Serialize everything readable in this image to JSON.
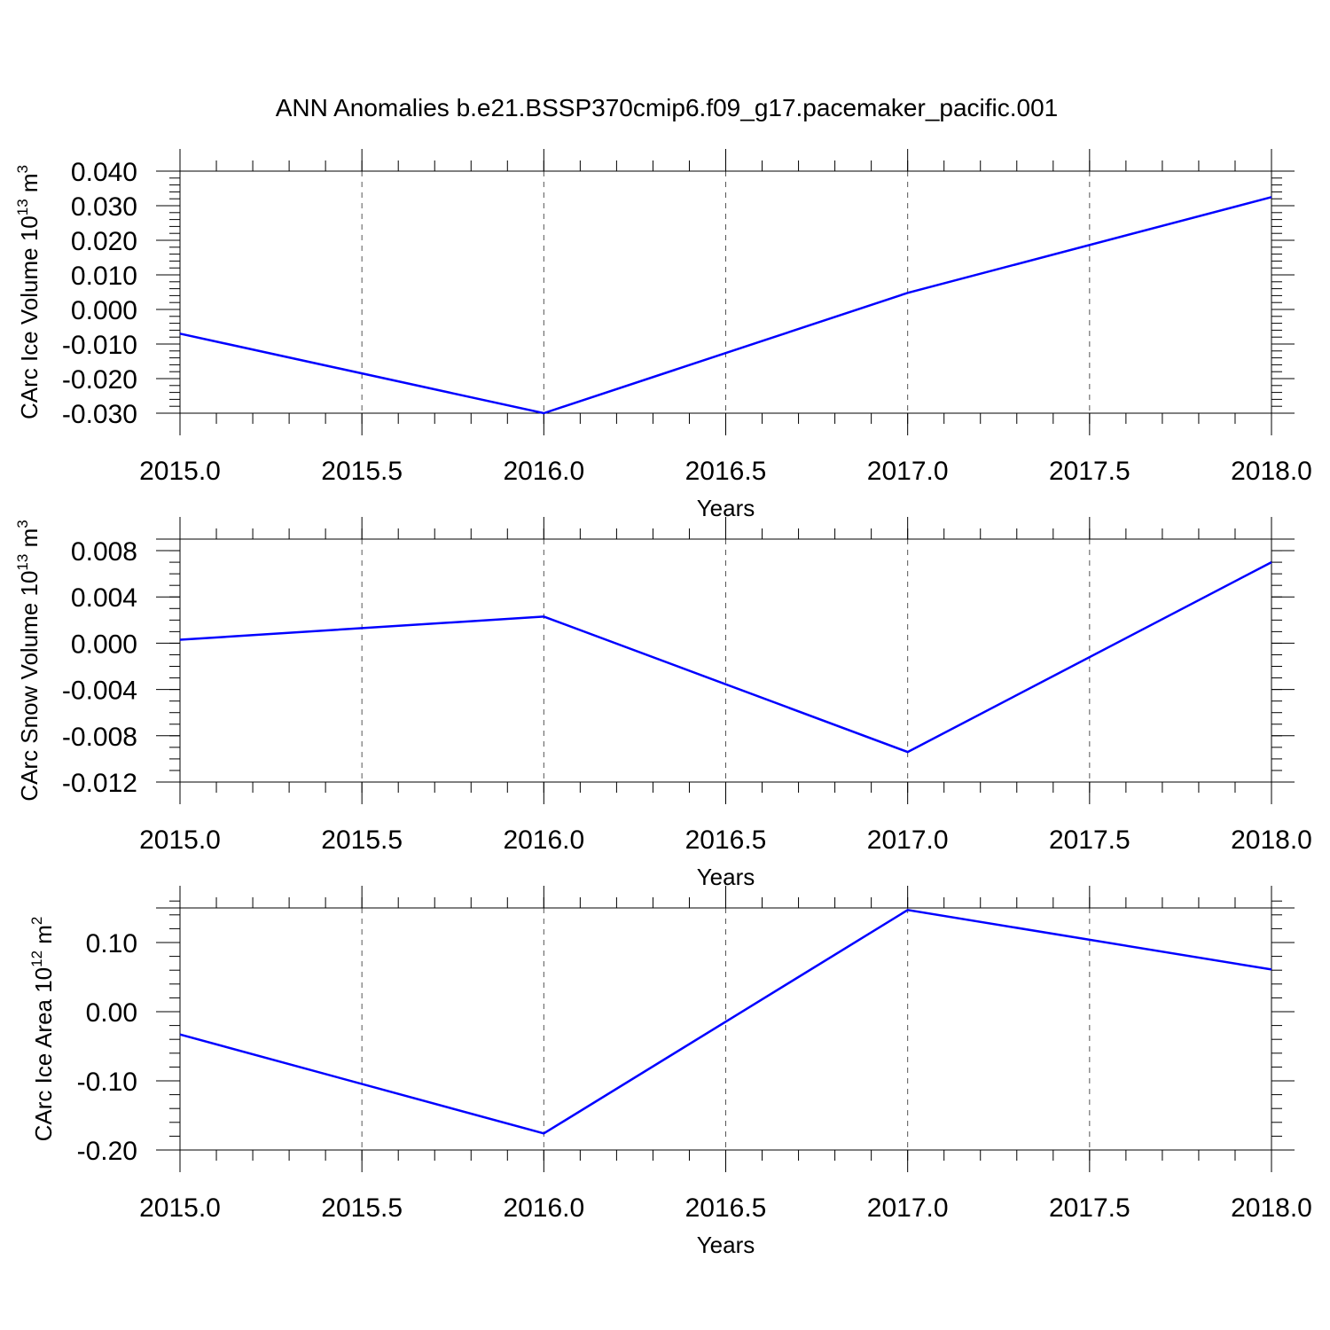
{
  "title": "ANN Anomalies b.e21.BSSP370cmip6.f09_g17.pacemaker_pacific.001",
  "chart_data": [
    {
      "type": "line",
      "xlabel": "Years",
      "ylabel": {
        "text": "CArc Ice Volume 10",
        "exp": "13",
        "unit": " m",
        "unit_exp": "3"
      },
      "x": [
        2015,
        2016,
        2017,
        2018
      ],
      "series": [
        {
          "values": [
            -0.007,
            -0.03,
            0.0048,
            0.0325
          ],
          "color": "#0000ff"
        }
      ],
      "xlim": [
        2015,
        2018
      ],
      "ylim": [
        -0.03,
        0.04
      ],
      "x_ticks": [
        2015.0,
        2015.5,
        2016.0,
        2016.5,
        2017.0,
        2017.5,
        2018.0
      ],
      "x_tick_labels": [
        "2015.0",
        "2015.5",
        "2016.0",
        "2016.5",
        "2017.0",
        "2017.5",
        "2018.0"
      ],
      "y_ticks": [
        -0.03,
        -0.02,
        -0.01,
        0.0,
        0.01,
        0.02,
        0.03,
        0.04
      ],
      "y_tick_labels": [
        "-0.030",
        "-0.020",
        "-0.010",
        "0.000",
        "0.010",
        "0.020",
        "0.030",
        "0.040"
      ],
      "y_minor_step": 0.002,
      "grid": "vertical-dashed"
    },
    {
      "type": "line",
      "xlabel": "Years",
      "ylabel": {
        "text": "CArc Snow Volume 10",
        "exp": "13",
        "unit": " m",
        "unit_exp": "3"
      },
      "x": [
        2015,
        2016,
        2017,
        2018
      ],
      "series": [
        {
          "values": [
            0.0003,
            0.0023,
            -0.0094,
            0.007
          ],
          "color": "#0000ff"
        }
      ],
      "xlim": [
        2015,
        2018
      ],
      "ylim": [
        -0.012,
        0.009
      ],
      "x_ticks": [
        2015.0,
        2015.5,
        2016.0,
        2016.5,
        2017.0,
        2017.5,
        2018.0
      ],
      "x_tick_labels": [
        "2015.0",
        "2015.5",
        "2016.0",
        "2016.5",
        "2017.0",
        "2017.5",
        "2018.0"
      ],
      "y_ticks": [
        -0.012,
        -0.008,
        -0.004,
        0.0,
        0.004,
        0.008
      ],
      "y_tick_labels": [
        "-0.012",
        "-0.008",
        "-0.004",
        "0.000",
        "0.004",
        "0.008"
      ],
      "y_minor_step": 0.001,
      "grid": "vertical-dashed"
    },
    {
      "type": "line",
      "xlabel": "Years",
      "ylabel": {
        "text": "CArc Ice Area 10",
        "exp": "12",
        "unit": " m",
        "unit_exp": "2"
      },
      "x": [
        2015,
        2016,
        2017,
        2018
      ],
      "series": [
        {
          "values": [
            -0.033,
            -0.176,
            0.147,
            0.061
          ],
          "color": "#0000ff"
        }
      ],
      "xlim": [
        2015,
        2018
      ],
      "ylim": [
        -0.2,
        0.15
      ],
      "x_ticks": [
        2015.0,
        2015.5,
        2016.0,
        2016.5,
        2017.0,
        2017.5,
        2018.0
      ],
      "x_tick_labels": [
        "2015.0",
        "2015.5",
        "2016.0",
        "2016.5",
        "2017.0",
        "2017.5",
        "2018.0"
      ],
      "y_ticks": [
        -0.2,
        -0.1,
        0.0,
        0.1
      ],
      "y_tick_labels": [
        "-0.20",
        "-0.10",
        "0.00",
        "0.10"
      ],
      "y_minor_step": 0.02,
      "grid": "vertical-dashed"
    }
  ]
}
